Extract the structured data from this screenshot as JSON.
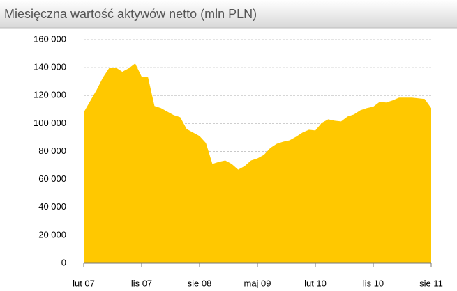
{
  "chart_data": {
    "type": "area",
    "title": "Miesięczna wartość aktywów netto (mln PLN)",
    "categories": [
      "lut 07",
      null,
      null,
      null,
      null,
      null,
      null,
      null,
      null,
      "lis 07",
      null,
      null,
      null,
      null,
      null,
      null,
      null,
      null,
      "sie 08",
      null,
      null,
      null,
      null,
      null,
      null,
      null,
      null,
      "maj 09",
      null,
      null,
      null,
      null,
      null,
      null,
      null,
      null,
      "lut 10",
      null,
      null,
      null,
      null,
      null,
      null,
      null,
      null,
      "lis 10",
      null,
      null,
      null,
      null,
      null,
      null,
      null,
      null,
      "sie 11"
    ],
    "values": [
      108000,
      116000,
      124000,
      133000,
      140000,
      140000,
      137000,
      139500,
      143000,
      133500,
      133000,
      112500,
      111000,
      108500,
      106000,
      104500,
      96000,
      93500,
      91000,
      86000,
      71000,
      72500,
      73500,
      71000,
      67000,
      69500,
      73500,
      75000,
      77500,
      82500,
      85500,
      87000,
      88000,
      90500,
      93500,
      95500,
      95000,
      100500,
      103000,
      102000,
      101500,
      105000,
      106500,
      109500,
      111000,
      112000,
      115500,
      115000,
      116500,
      118500,
      118500,
      118500,
      118000,
      117500,
      111000
    ],
    "color": "#ffc800",
    "ylim": [
      0,
      160000
    ],
    "yticks": [
      0,
      {
        "value": 20000,
        "label": "20 000"
      },
      {
        "value": 40000,
        "label": "40 000"
      },
      {
        "value": 60000,
        "label": "60 000"
      },
      {
        "value": 80000,
        "label": "80 000"
      },
      {
        "value": 100000,
        "label": "100 000"
      },
      {
        "value": 120000,
        "label": "120 000"
      },
      {
        "value": 140000,
        "label": "140 000"
      },
      {
        "value": 160000,
        "label": "160 000"
      }
    ],
    "grid": true
  }
}
